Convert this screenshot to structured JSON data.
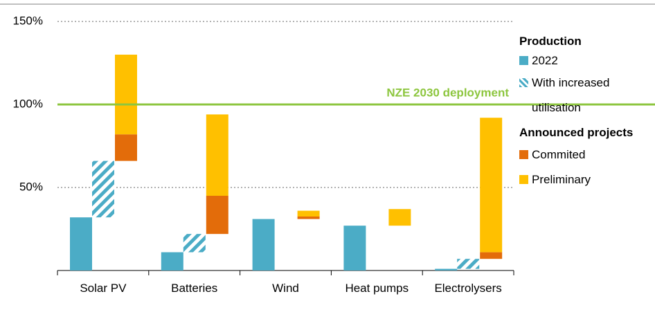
{
  "chart_data": {
    "type": "bar",
    "categories": [
      "Solar PV",
      "Batteries",
      "Wind",
      "Heat pumps",
      "Electrolysers"
    ],
    "legend_groups": [
      "Production",
      "Announced projects"
    ],
    "series": [
      {
        "name": "2022",
        "color": "#4bacc6",
        "values": [
          32,
          11,
          31,
          27,
          1
        ]
      },
      {
        "name": "With increased utilisation",
        "color": "#4bacc6",
        "hatched": true,
        "values": [
          34,
          11,
          0,
          0,
          6
        ]
      },
      {
        "name": "Commited",
        "color": "#e36c0a",
        "values": [
          16,
          23,
          1.5,
          0,
          4
        ]
      },
      {
        "name": "Preliminary",
        "color": "#ffc000",
        "values": [
          48,
          49,
          3.5,
          10,
          81
        ]
      }
    ],
    "reference_line": {
      "value": 100,
      "label": "NZE 2030 deployment",
      "color": "#8dc63f"
    },
    "ylim": [
      0,
      150
    ],
    "yticks": [
      {
        "value": 50,
        "label": "50%"
      },
      {
        "value": 100,
        "label": "100%"
      },
      {
        "value": 150,
        "label": "150%"
      }
    ],
    "grid": true
  }
}
